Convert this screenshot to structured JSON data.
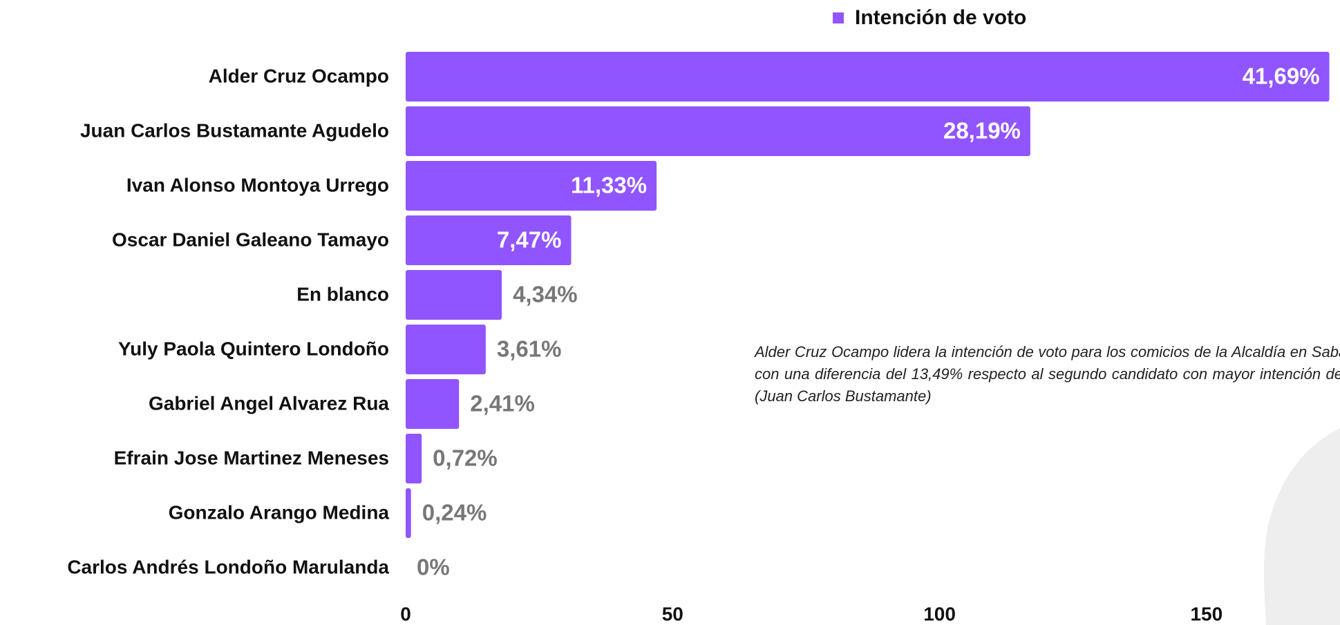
{
  "chart_data": {
    "type": "bar",
    "orientation": "horizontal",
    "legend": "Intención de voto",
    "color": "#9055ff",
    "categories": [
      "Alder Cruz Ocampo",
      "Juan Carlos Bustamante Agudelo",
      "Ivan Alonso Montoya Urrego",
      "Oscar Daniel Galeano Tamayo",
      "En blanco",
      "Yuly Paola Quintero Londoño",
      "Gabriel Angel Alvarez Rua",
      "Efrain Jose Martinez Meneses",
      "Gonzalo  Arango Medina",
      "Carlos Andrés Londoño Marulanda"
    ],
    "values": [
      173,
      117,
      47,
      31,
      18,
      15,
      10,
      3,
      1,
      0
    ],
    "value_labels": [
      "41,69%",
      "28,19%",
      "11,33%",
      "7,47%",
      "4,34%",
      "3,61%",
      "2,41%",
      "0,72%",
      "0,24%",
      "0%"
    ],
    "xlim": [
      0,
      175
    ],
    "xticks": [
      0,
      50,
      100,
      150
    ],
    "annotation": "Alder Cruz Ocampo lidera la intención de voto para los comicios de la Alcaldía en Sabaneta con una diferencia del 13,49% respecto al segundo candidato con mayor intención de voto (Juan Carlos Bustamante)"
  }
}
